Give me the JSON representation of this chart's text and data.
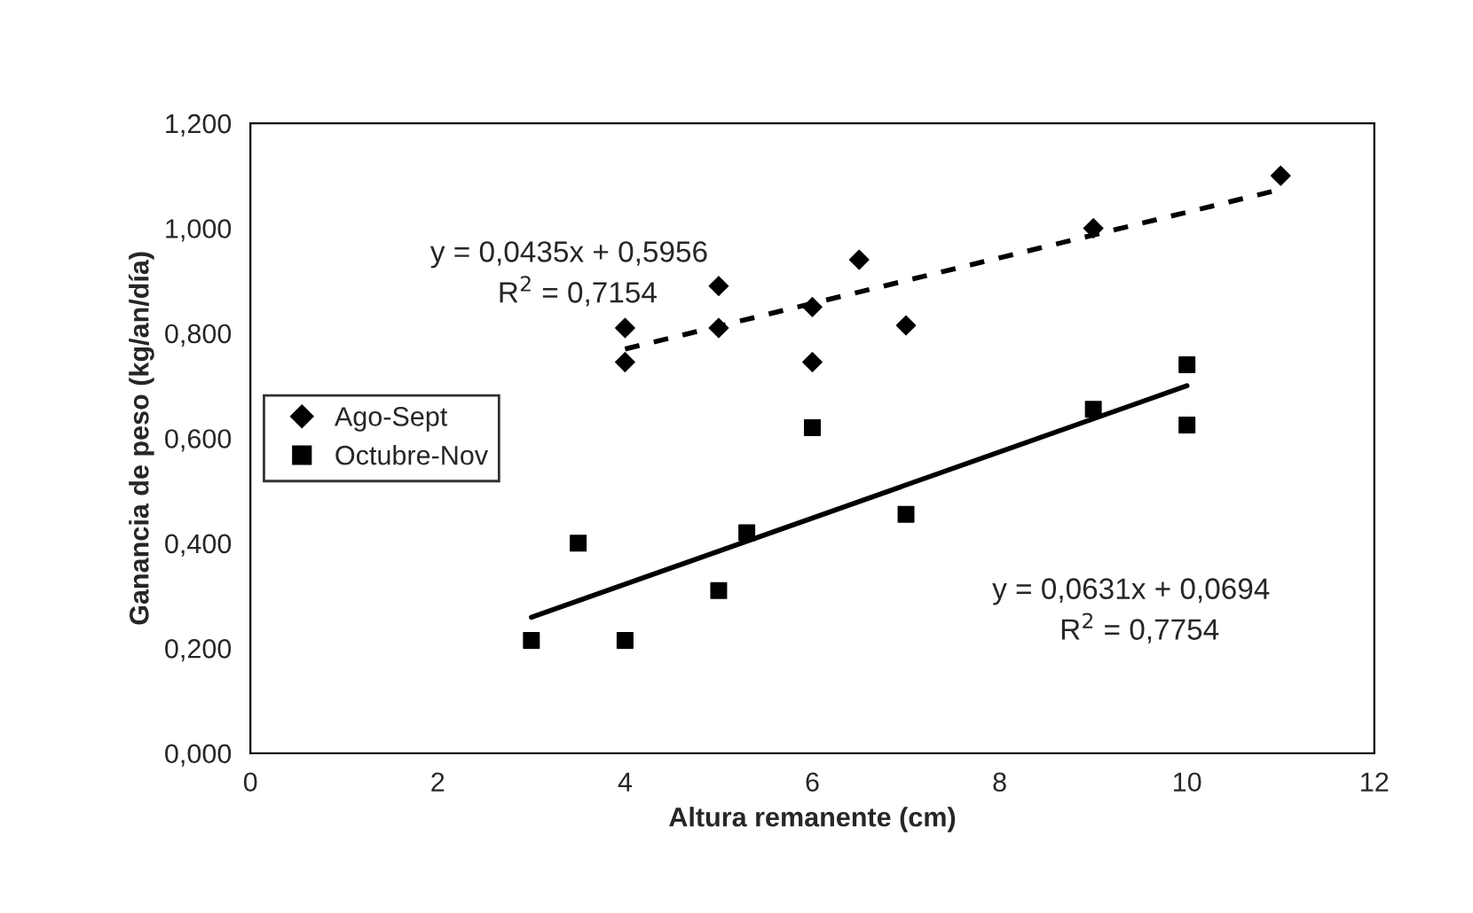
{
  "chart_data": {
    "type": "scatter",
    "xlabel": "Altura remanente (cm)",
    "ylabel": "Ganancia de peso (kg/an/día)",
    "xlim": [
      0,
      12
    ],
    "xticks": [
      0,
      2,
      4,
      6,
      8,
      10,
      12
    ],
    "ylim": [
      0,
      1.2
    ],
    "yticks": [
      {
        "value": 0,
        "label": "0,000"
      },
      {
        "value": 0.2,
        "label": "0,200"
      },
      {
        "value": 0.4,
        "label": "0,400"
      },
      {
        "value": 0.6,
        "label": "0,600"
      },
      {
        "value": 0.8,
        "label": "0,800"
      },
      {
        "value": 1.0,
        "label": "1,000"
      },
      {
        "value": 1.2,
        "label": "1,200"
      }
    ],
    "grid": false,
    "legend": "left",
    "series": [
      {
        "name": "Ago-Sept",
        "marker": "diamond",
        "color": "#000000",
        "x": [
          4,
          4,
          5,
          5,
          6,
          6,
          6.5,
          7,
          9,
          11
        ],
        "values": [
          0.81,
          0.745,
          0.89,
          0.81,
          0.85,
          0.745,
          0.94,
          0.815,
          1.0,
          1.1
        ]
      },
      {
        "name": "Octubre-Nov",
        "marker": "square",
        "color": "#000000",
        "x": [
          3,
          3.5,
          4,
          5,
          5.3,
          6,
          7,
          9,
          10,
          10
        ],
        "values": [
          0.215,
          0.4,
          0.215,
          0.31,
          0.42,
          0.62,
          0.455,
          0.655,
          0.74,
          0.625
        ]
      },
      {
        "type": "line",
        "line_style": "dashed",
        "marker": "none",
        "color": "#000000",
        "x": [
          4,
          11
        ],
        "values": [
          0.77,
          1.074
        ]
      },
      {
        "type": "line",
        "line_style": "solid",
        "marker": "none",
        "color": "#000000",
        "x": [
          3,
          10
        ],
        "values": [
          0.259,
          0.7
        ]
      }
    ],
    "annotations": [
      "y = 0,0435x + 0,5956",
      "R$^{2}$ = 0,7154",
      "y = 0,0631x + 0,0694",
      "R$^{2}$ = 0,7754"
    ]
  }
}
